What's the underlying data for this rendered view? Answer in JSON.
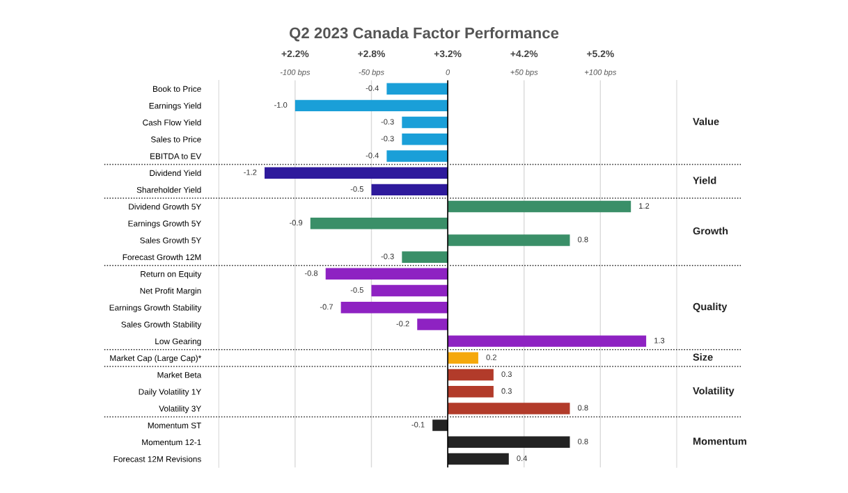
{
  "chart_data": {
    "type": "bar",
    "orientation": "horizontal",
    "title": "Q2 2023 Canada Factor Performance",
    "categories": [
      "Book to Price",
      "Earnings Yield",
      "Cash Flow Yield",
      "Sales to Price",
      "EBITDA to EV",
      "Dividend Yield",
      "Shareholder Yield",
      "Dividend Growth 5Y",
      "Earnings Growth 5Y",
      "Sales Growth 5Y",
      "Forecast Growth 12M",
      "Return on Equity",
      "Net Profit Margin",
      "Earnings Growth Stability",
      "Sales Growth Stability",
      "Low Gearing",
      "Market Cap (Large Cap)*",
      "Market Beta",
      "Daily Volatility 1Y",
      "Volatility 3Y",
      "Momentum ST",
      "Momentum 12-1",
      "Forecast 12M Revisions"
    ],
    "series": [
      {
        "name": "Value",
        "color": "#1a9fd8",
        "values": [
          -0.4,
          -1.0,
          -0.3,
          -0.3,
          -0.4,
          null,
          null,
          null,
          null,
          null,
          null,
          null,
          null,
          null,
          null,
          null,
          null,
          null,
          null,
          null,
          null,
          null,
          null
        ],
        "value_labels": [
          "-0.4",
          "-1.0",
          "-0.3",
          "-0.3",
          "-0.4",
          null,
          null,
          null,
          null,
          null,
          null,
          null,
          null,
          null,
          null,
          null,
          null,
          null,
          null,
          null,
          null,
          null,
          null
        ]
      },
      {
        "name": "Yield",
        "color": "#2e1a9c",
        "values": [
          null,
          null,
          null,
          null,
          null,
          -1.2,
          -0.5,
          null,
          null,
          null,
          null,
          null,
          null,
          null,
          null,
          null,
          null,
          null,
          null,
          null,
          null,
          null,
          null
        ],
        "value_labels": [
          null,
          null,
          null,
          null,
          null,
          "-1.2",
          "-0.5",
          null,
          null,
          null,
          null,
          null,
          null,
          null,
          null,
          null,
          null,
          null,
          null,
          null,
          null,
          null,
          null
        ]
      },
      {
        "name": "Growth",
        "color": "#3a8f68",
        "values": [
          null,
          null,
          null,
          null,
          null,
          null,
          null,
          1.2,
          -0.9,
          0.8,
          -0.3,
          null,
          null,
          null,
          null,
          null,
          null,
          null,
          null,
          null,
          null,
          null,
          null
        ],
        "value_labels": [
          null,
          null,
          null,
          null,
          null,
          null,
          null,
          "1.2",
          "-0.9",
          "0.8",
          "-0.3",
          null,
          null,
          null,
          null,
          null,
          null,
          null,
          null,
          null,
          null,
          null,
          null
        ]
      },
      {
        "name": "Quality",
        "color": "#8e22c2",
        "values": [
          null,
          null,
          null,
          null,
          null,
          null,
          null,
          null,
          null,
          null,
          null,
          -0.8,
          -0.5,
          -0.7,
          -0.2,
          1.3,
          null,
          null,
          null,
          null,
          null,
          null,
          null
        ],
        "value_labels": [
          null,
          null,
          null,
          null,
          null,
          null,
          null,
          null,
          null,
          null,
          null,
          "-0.8",
          "-0.5",
          "-0.7",
          "-0.2",
          "1.3",
          null,
          null,
          null,
          null,
          null,
          null,
          null
        ]
      },
      {
        "name": "Size",
        "color": "#f5a80c",
        "values": [
          null,
          null,
          null,
          null,
          null,
          null,
          null,
          null,
          null,
          null,
          null,
          null,
          null,
          null,
          null,
          null,
          0.2,
          null,
          null,
          null,
          null,
          null,
          null
        ],
        "value_labels": [
          null,
          null,
          null,
          null,
          null,
          null,
          null,
          null,
          null,
          null,
          null,
          null,
          null,
          null,
          null,
          null,
          "0.2",
          null,
          null,
          null,
          null,
          null,
          null
        ]
      },
      {
        "name": "Volatility",
        "color": "#b23b2a",
        "values": [
          null,
          null,
          null,
          null,
          null,
          null,
          null,
          null,
          null,
          null,
          null,
          null,
          null,
          null,
          null,
          null,
          null,
          0.3,
          0.3,
          0.8,
          null,
          null,
          null
        ],
        "value_labels": [
          null,
          null,
          null,
          null,
          null,
          null,
          null,
          null,
          null,
          null,
          null,
          null,
          null,
          null,
          null,
          null,
          null,
          "0.3",
          "0.3",
          "0.8",
          null,
          null,
          null
        ]
      },
      {
        "name": "Momentum",
        "color": "#232323",
        "values": [
          null,
          null,
          null,
          null,
          null,
          null,
          null,
          null,
          null,
          null,
          null,
          null,
          null,
          null,
          null,
          null,
          null,
          null,
          null,
          null,
          -0.1,
          0.8,
          0.4
        ],
        "value_labels": [
          null,
          null,
          null,
          null,
          null,
          null,
          null,
          null,
          null,
          null,
          null,
          null,
          null,
          null,
          null,
          null,
          null,
          null,
          null,
          null,
          "-0.1",
          "0.8",
          "0.4"
        ]
      }
    ],
    "xlim": [
      -1.5,
      1.5
    ],
    "x2lim": [
      -150,
      150
    ],
    "x2ticks": [
      {
        "value": -100,
        "label": "-100 bps"
      },
      {
        "value": -50,
        "label": "-50 bps"
      },
      0,
      {
        "value": 50,
        "label": "+50 bps"
      },
      {
        "value": 100,
        "label": "+100 bps"
      }
    ],
    "annotations": [
      "+2.2%",
      "+2.8%",
      "+3.2%",
      "+4.2%",
      "+5.2%"
    ],
    "ref_lines": [
      {
        "axis": "x",
        "value": 0,
        "color": "#000000"
      }
    ],
    "grid": "x",
    "legend": false
  }
}
